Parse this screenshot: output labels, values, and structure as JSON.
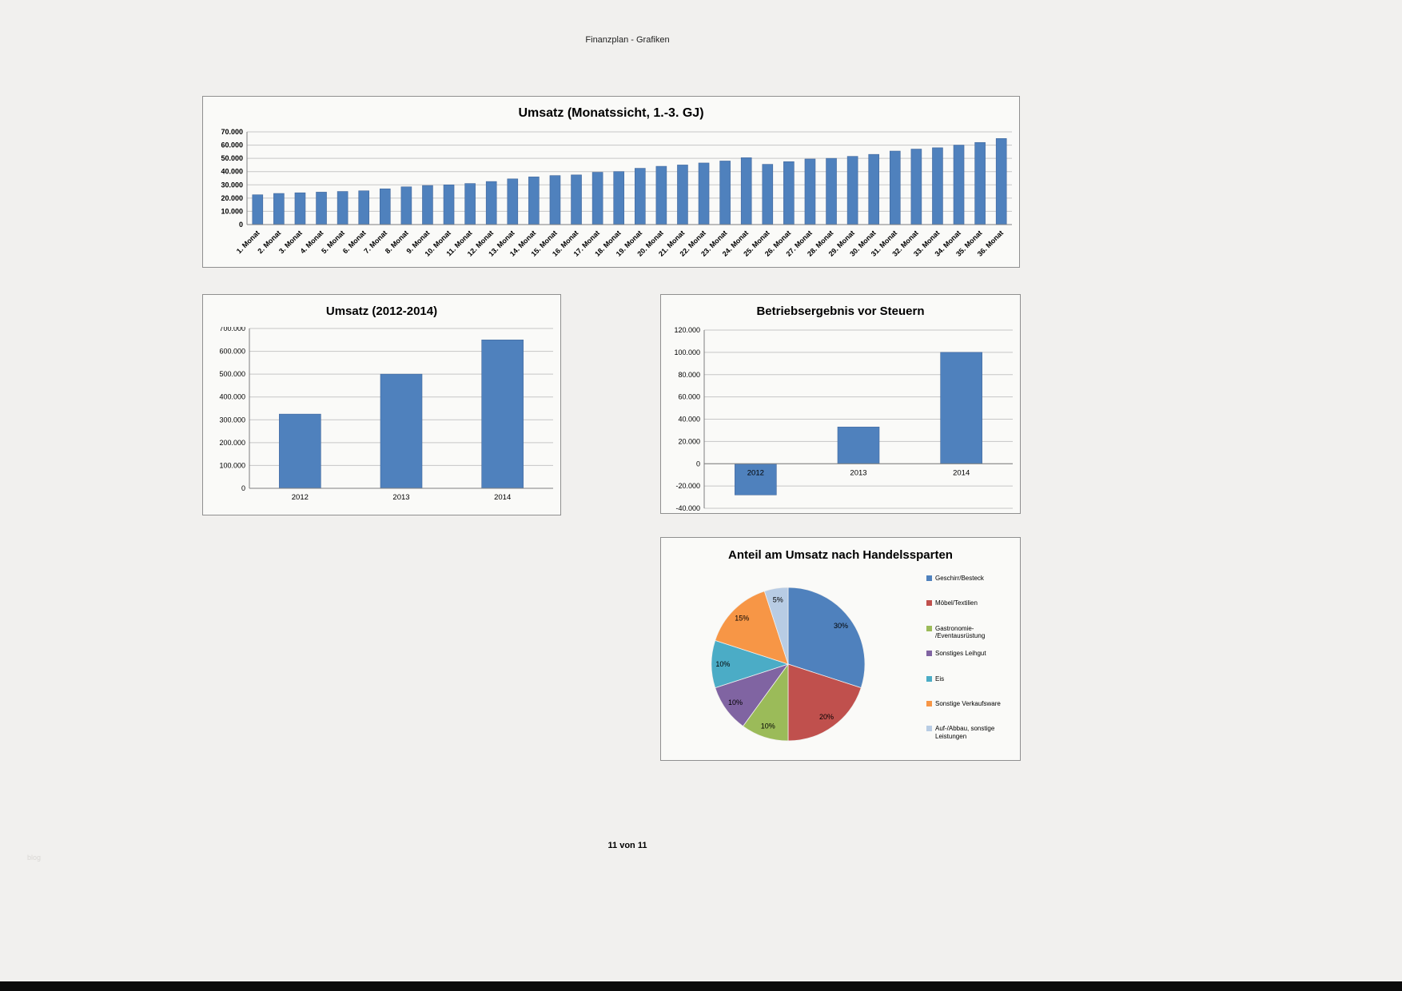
{
  "page": {
    "header": "Finanzplan - Grafiken",
    "footer": "11 von 11",
    "watermark": "blog"
  },
  "colors": {
    "bar_blue": "#4f81bd",
    "page_background": "#f1f0ee",
    "chart_background": "#fafaf8",
    "bottom_bar": "#0b0b0b"
  },
  "chart_data": [
    {
      "type": "bar",
      "title": "Umsatz (Monatssicht, 1.-3. GJ)",
      "categories": [
        "1. Monat",
        "2. Monat",
        "3. Monat",
        "4. Monat",
        "5. Monat",
        "6. Monat",
        "7. Monat",
        "8. Monat",
        "9. Monat",
        "10. Monat",
        "11. Monat",
        "12. Monat",
        "13. Monat",
        "14. Monat",
        "15. Monat",
        "16. Monat",
        "17. Monat",
        "18. Monat",
        "19. Monat",
        "20. Monat",
        "21. Monat",
        "22. Monat",
        "23. Monat",
        "24. Monat",
        "25. Monat",
        "26. Monat",
        "27. Monat",
        "28. Monat",
        "29. Monat",
        "30. Monat",
        "31. Monat",
        "32. Monat",
        "33. Monat",
        "34. Monat",
        "35. Monat",
        "36. Monat"
      ],
      "values": [
        22500,
        23500,
        24000,
        24500,
        25000,
        25500,
        27000,
        28500,
        29500,
        30000,
        31000,
        32500,
        34500,
        36000,
        37000,
        37500,
        39500,
        40000,
        42500,
        44000,
        45000,
        46500,
        48000,
        50500,
        45500,
        47500,
        49500,
        50000,
        51500,
        53000,
        55500,
        57000,
        58000,
        60000,
        62000,
        65000
      ],
      "ylim": [
        0,
        70000
      ],
      "ytick_step": 10000,
      "bar_color": "#4f81bd",
      "grid": true,
      "legend_position": "none"
    },
    {
      "type": "bar",
      "title": "Umsatz (2012-2014)",
      "categories": [
        "2012",
        "2013",
        "2014"
      ],
      "values": [
        325000,
        500000,
        650000
      ],
      "ylim": [
        0,
        700000
      ],
      "ytick_step": 100000,
      "bar_color": "#4f81bd",
      "grid": true,
      "legend_position": "none"
    },
    {
      "type": "bar",
      "title": "Betriebsergebnis vor Steuern",
      "categories": [
        "2012",
        "2013",
        "2014"
      ],
      "values": [
        -28000,
        33000,
        100000
      ],
      "ylim": [
        -40000,
        120000
      ],
      "ytick_step": 20000,
      "bar_color": "#4f81bd",
      "grid": true,
      "legend_position": "none"
    },
    {
      "type": "pie",
      "title": "Anteil am Umsatz nach Handelssparten",
      "labels": [
        "Geschirr/Besteck",
        "Möbel/Textilien",
        "Gastronomie-/Eventausrüstung",
        "Sonstiges Leihgut",
        "Eis",
        "Sonstige Verkaufsware",
        "Auf-/Abbau, sonstige Leistungen"
      ],
      "legend": [
        "Geschirr/Besteck",
        "Möbel/Textilien",
        "Gastronomie-\n/Eventausrüstung",
        "Sonstiges Leihgut",
        "Eis",
        "Sonstige Verkaufsware",
        "Auf-/Abbau, sonstige\nLeistungen"
      ],
      "values": [
        30,
        20,
        10,
        10,
        10,
        15,
        5
      ],
      "percent_labels": [
        "30%",
        "20%",
        "10%",
        "10%",
        "10%",
        "15%",
        "5%"
      ],
      "colors": [
        "#4f81bd",
        "#c0504d",
        "#9bbb59",
        "#8064a2",
        "#4bacc6",
        "#f79646",
        "#b8cce4"
      ],
      "legend_position": "right"
    }
  ]
}
